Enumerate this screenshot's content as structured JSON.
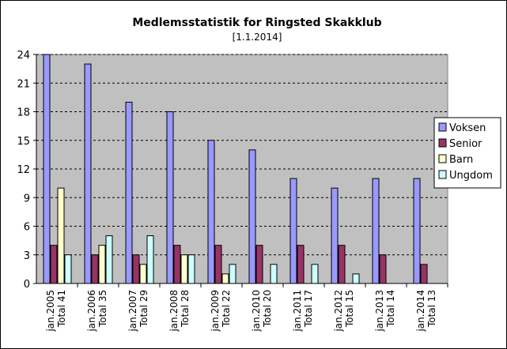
{
  "chart_data": {
    "type": "bar",
    "title": "Medlemsstatistik for Ringsted Skakklub",
    "subtitle": "[1.1.2014]",
    "categories": [
      [
        "jan.2005",
        "Total 41"
      ],
      [
        "jan.2006",
        "Total 35"
      ],
      [
        "jan.2007",
        "Total 29"
      ],
      [
        "jan.2008",
        "Total 28"
      ],
      [
        "jan.2009",
        "Total 22"
      ],
      [
        "jan.2010",
        "Total 20"
      ],
      [
        "jan.2011",
        "Total 17"
      ],
      [
        "jan.2012",
        "Total 15"
      ],
      [
        "jan.2013",
        "Total 14"
      ],
      [
        "jan.2014",
        "Total 13"
      ]
    ],
    "series": [
      {
        "name": "Voksen",
        "color": "#9999ff",
        "values": [
          24,
          23,
          19,
          18,
          15,
          14,
          11,
          10,
          11,
          11
        ]
      },
      {
        "name": "Senior",
        "color": "#993366",
        "values": [
          4,
          3,
          3,
          4,
          4,
          4,
          4,
          4,
          3,
          2
        ]
      },
      {
        "name": "Barn",
        "color": "#ffffcc",
        "values": [
          10,
          4,
          2,
          3,
          1,
          0,
          0,
          0,
          0,
          0
        ]
      },
      {
        "name": "Ungdom",
        "color": "#ccffff",
        "values": [
          3,
          5,
          5,
          3,
          2,
          2,
          2,
          1,
          0,
          0
        ]
      }
    ],
    "ylim": [
      0,
      24
    ],
    "yticks": [
      0,
      3,
      6,
      9,
      12,
      15,
      18,
      21,
      24
    ],
    "grid": true,
    "plot_background": "#c0c0c0",
    "legend_position": "right"
  }
}
